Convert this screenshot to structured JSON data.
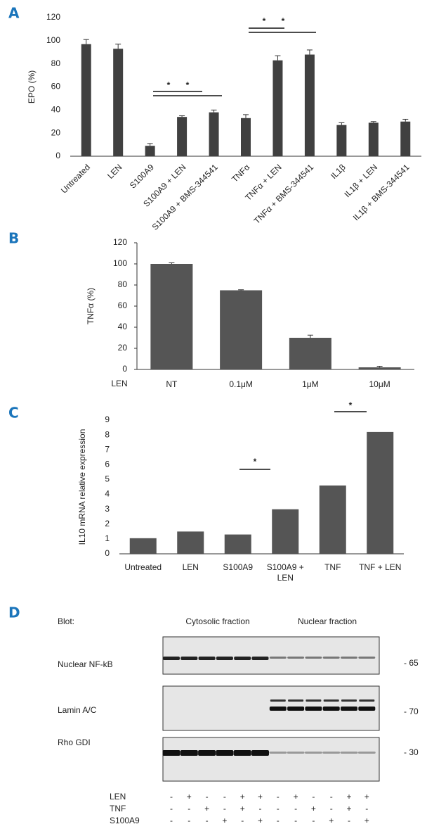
{
  "panels": [
    "A",
    "B",
    "C",
    "D"
  ],
  "chart_data": [
    {
      "type": "bar",
      "ylabel": "EPO (%)",
      "categories": [
        "Untreated",
        "LEN",
        "S100A9",
        "S100A9 + LEN",
        "S100A9 + BMS-344541",
        "TNFα",
        "TNFα + LEN",
        "TNFα + BMS-344541",
        "IL1β",
        "IL1β + LEN",
        "IL1β + BMS-344541"
      ],
      "values": [
        97,
        93,
        9,
        34,
        38,
        33,
        83,
        88,
        27,
        29,
        30
      ],
      "errors": [
        4,
        4,
        2,
        1,
        2,
        3,
        4,
        4,
        2,
        1,
        2
      ],
      "color": "#404040",
      "ylim": [
        0,
        120
      ],
      "yticks": [
        0,
        20,
        40,
        60,
        80,
        100,
        120
      ],
      "annotations": [
        "*",
        "*",
        "*",
        "*"
      ]
    },
    {
      "type": "bar",
      "ylabel": "TNFα (%)",
      "xlabel": "LEN",
      "categories": [
        "NT",
        "0.1μM",
        "1μM",
        "10μM"
      ],
      "values": [
        100,
        75,
        30,
        2
      ],
      "errors": [
        1,
        0.5,
        2.5,
        1
      ],
      "color": "#555555",
      "ylim": [
        0,
        120
      ],
      "yticks": [
        0,
        20,
        40,
        60,
        80,
        100,
        120
      ]
    },
    {
      "type": "bar",
      "ylabel": "IL10 mRNA relative expression",
      "categories": [
        "Untreated",
        "LEN",
        "S100A9",
        "S100A9 + LEN",
        "TNF",
        "TNF + LEN"
      ],
      "values": [
        1.05,
        1.5,
        1.3,
        3.0,
        4.6,
        8.2
      ],
      "color": "#555555",
      "ylim": [
        0,
        9
      ],
      "yticks": [
        0,
        1,
        2,
        3,
        4,
        5,
        6,
        7,
        8,
        9
      ],
      "annotations": [
        "*",
        "*"
      ]
    }
  ],
  "blot": {
    "title": "Blot:",
    "fractions": [
      "Cytosolic fraction",
      "Nuclear fraction"
    ],
    "rows": [
      "Nuclear NF-kB",
      "Lamin A/C",
      "Rho GDI"
    ],
    "sizes": [
      "- 65",
      "- 70",
      "- 30"
    ],
    "treatments": [
      {
        "name": "LEN",
        "signs": [
          "-",
          "+",
          "-",
          "-",
          "+",
          "+",
          "-",
          "+",
          "-",
          "-",
          "+",
          "+"
        ]
      },
      {
        "name": "TNF",
        "signs": [
          "-",
          "-",
          "+",
          "-",
          "+",
          "-",
          "-",
          "-",
          "+",
          "-",
          "+",
          "-"
        ]
      },
      {
        "name": "S100A9",
        "signs": [
          "-",
          "-",
          "-",
          "+",
          "-",
          "+",
          "-",
          "-",
          "-",
          "+",
          "-",
          "+"
        ]
      }
    ]
  }
}
